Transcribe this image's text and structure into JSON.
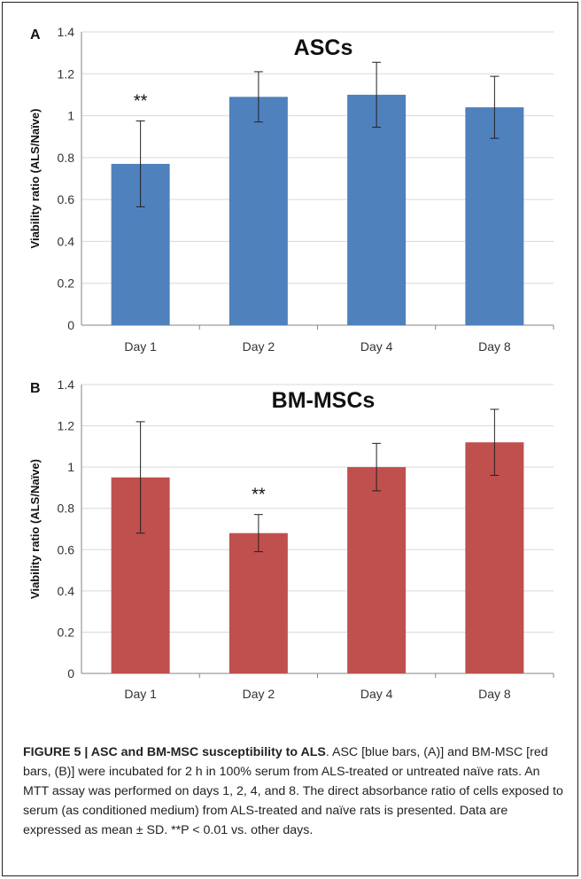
{
  "chart_data": [
    {
      "type": "bar",
      "panel_label": "A",
      "title": "ASCs",
      "ylabel": "Viability ratio (ALS/Naïve)",
      "xlabel": "",
      "categories": [
        "Day 1",
        "Day 2",
        "Day 4",
        "Day 8"
      ],
      "values": [
        0.77,
        1.09,
        1.1,
        1.04
      ],
      "errors": [
        0.205,
        0.12,
        0.155,
        0.148
      ],
      "annotations": [
        "**",
        "",
        "",
        ""
      ],
      "ylim": [
        0,
        1.4
      ],
      "yticks": [
        0,
        0.2,
        0.4,
        0.6,
        0.8,
        1,
        1.2,
        1.4
      ],
      "ytick_labels": [
        "0",
        "0.2",
        "0.4",
        "0.6",
        "0.8",
        "1",
        "1.2",
        "1.4"
      ],
      "color": "#4f81bd",
      "grid": true
    },
    {
      "type": "bar",
      "panel_label": "B",
      "title": "BM-MSCs",
      "ylabel": "Viability ratio (ALS/Naïve)",
      "xlabel": "",
      "categories": [
        "Day 1",
        "Day 2",
        "Day 4",
        "Day 8"
      ],
      "values": [
        0.95,
        0.68,
        1.0,
        1.12
      ],
      "errors": [
        0.27,
        0.09,
        0.115,
        0.16
      ],
      "annotations": [
        "",
        "**",
        "",
        ""
      ],
      "ylim": [
        0,
        1.4
      ],
      "yticks": [
        0,
        0.2,
        0.4,
        0.6,
        0.8,
        1,
        1.2,
        1.4
      ],
      "ytick_labels": [
        "0",
        "0.2",
        "0.4",
        "0.6",
        "0.8",
        "1",
        "1.2",
        "1.4"
      ],
      "color": "#c0504d",
      "grid": true
    }
  ],
  "caption": {
    "title": "FIGURE 5 | ASC and BM-MSC susceptibility to ALS",
    "text": ". ASC [blue bars, (A)] and BM-MSC [red bars, (B)] were incubated for 2 h in 100% serum from ALS-treated or untreated naïve rats. An MTT assay was performed on days 1, 2, 4, and 8. The direct absorbance ratio of cells exposed to serum (as conditioned medium) from ALS-treated and naïve rats is presented. Data are expressed as mean ± SD. **P < 0.01 vs. other days."
  }
}
